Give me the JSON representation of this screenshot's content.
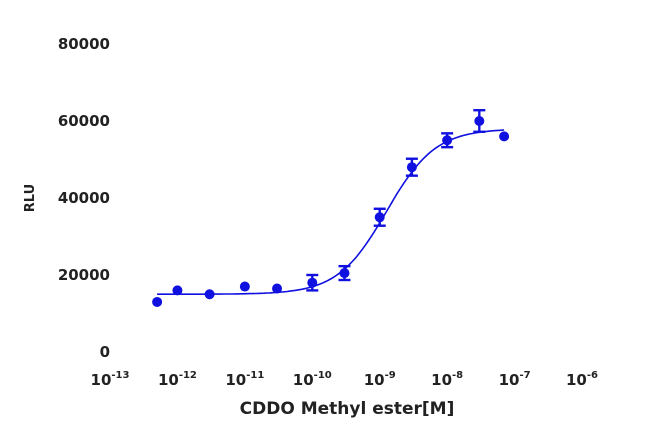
{
  "chart_data": {
    "type": "scatter",
    "title": "",
    "xlabel": "CDDO Methyl ester[M]",
    "ylabel": "RLU",
    "x_scale": "log10",
    "xlim": [
      1e-13,
      1e-06
    ],
    "ylim": [
      0,
      80000
    ],
    "x_ticks": [
      {
        "base": "10",
        "exp": "-13"
      },
      {
        "base": "10",
        "exp": "-12"
      },
      {
        "base": "10",
        "exp": "-11"
      },
      {
        "base": "10",
        "exp": "-10"
      },
      {
        "base": "10",
        "exp": "-9"
      },
      {
        "base": "10",
        "exp": "-8"
      },
      {
        "base": "10",
        "exp": "-7"
      },
      {
        "base": "10",
        "exp": "-6"
      }
    ],
    "y_ticks": [
      "0",
      "20000",
      "40000",
      "60000",
      "80000"
    ],
    "grid": false,
    "colors": {
      "series": "#1010e0",
      "axis": "#222222"
    },
    "series": [
      {
        "x": [
          5e-13,
          1e-12,
          3e-12,
          1e-11,
          3e-11,
          1e-10,
          3e-10,
          1e-09,
          3e-09,
          1e-08,
          3e-08,
          7e-08
        ],
        "y": [
          13000,
          16000,
          15000,
          17000,
          16500,
          18000,
          20500,
          35000,
          48000,
          55000,
          60000,
          56000
        ],
        "error": [
          0,
          0,
          0,
          0,
          0,
          2000,
          1800,
          2200,
          2200,
          1800,
          2800,
          0
        ]
      }
    ],
    "fit_curve": {
      "type": "sigmoid",
      "bottom": 15000,
      "top": 58000,
      "log_ec50": -8.9,
      "hill": 1.2
    }
  }
}
